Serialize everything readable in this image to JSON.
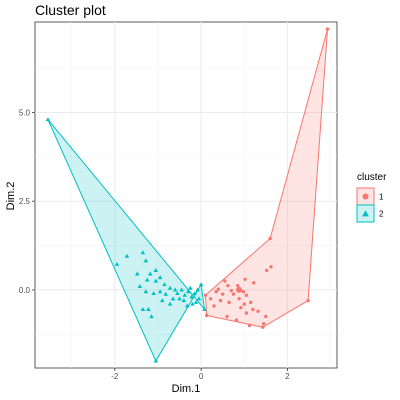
{
  "chart_data": {
    "type": "scatter",
    "title": "Cluster plot",
    "xlabel": "Dim.1",
    "ylabel": "Dim.2",
    "xlim": [
      -3.85,
      3.15
    ],
    "ylim": [
      -2.2,
      7.55
    ],
    "x_ticks": [
      -2,
      0,
      2
    ],
    "y_ticks": [
      0.0,
      2.5,
      5.0
    ],
    "x_tick_labels": [
      "-2",
      "0",
      "2"
    ],
    "y_tick_labels": [
      "0.0",
      "2.5",
      "5.0"
    ],
    "grid": true,
    "legend_position": "right",
    "legend": {
      "title": "cluster",
      "entries": [
        {
          "label": "1",
          "color": "#F8766D",
          "shape": "circle"
        },
        {
          "label": "2",
          "color": "#00BFC4",
          "shape": "triangle"
        }
      ]
    },
    "series": [
      {
        "name": "1",
        "color": "#F8766D",
        "fill": "#F8766D",
        "shape": "circle",
        "hull": [
          [
            2.93,
            7.35
          ],
          [
            2.48,
            -0.3
          ],
          [
            1.43,
            -1.05
          ],
          [
            0.13,
            -0.72
          ],
          [
            0.1,
            -0.15
          ],
          [
            1.6,
            1.45
          ]
        ],
        "points": [
          [
            2.93,
            7.35
          ],
          [
            2.48,
            -0.3
          ],
          [
            1.43,
            -1.05
          ],
          [
            0.13,
            -0.72
          ],
          [
            0.1,
            -0.15
          ],
          [
            1.6,
            1.45
          ],
          [
            1.52,
            0.55
          ],
          [
            1.62,
            0.65
          ],
          [
            1.02,
            0.3
          ],
          [
            1.22,
            0.2
          ],
          [
            0.85,
            0.12
          ],
          [
            0.98,
            -0.05
          ],
          [
            0.55,
            0.25
          ],
          [
            0.62,
            0.12
          ],
          [
            0.7,
            -0.02
          ],
          [
            0.5,
            -0.12
          ],
          [
            0.35,
            -0.05
          ],
          [
            0.45,
            -0.3
          ],
          [
            0.65,
            -0.35
          ],
          [
            0.88,
            -0.25
          ],
          [
            0.75,
            -0.12
          ],
          [
            0.92,
            -0.5
          ],
          [
            1.05,
            -0.65
          ],
          [
            1.2,
            -0.55
          ],
          [
            1.32,
            -0.6
          ],
          [
            1.5,
            -0.75
          ],
          [
            1.45,
            -0.95
          ],
          [
            0.6,
            -0.75
          ],
          [
            0.82,
            -0.85
          ],
          [
            1.12,
            -1.0
          ],
          [
            1.0,
            -0.4
          ],
          [
            0.3,
            -0.45
          ],
          [
            0.22,
            -0.25
          ],
          [
            0.4,
            0.02
          ],
          [
            1.05,
            -0.15
          ],
          [
            1.15,
            -0.35
          ]
        ],
        "big_points": [
          [
            0.88,
            0.0
          ]
        ]
      },
      {
        "name": "2",
        "color": "#00BFC4",
        "fill": "#00BFC4",
        "shape": "triangle",
        "hull": [
          [
            -3.55,
            4.8
          ],
          [
            0.08,
            -0.55
          ],
          [
            0.0,
            0.15
          ],
          [
            -1.05,
            -2.0
          ]
        ],
        "points": [
          [
            -3.55,
            4.8
          ],
          [
            0.08,
            -0.55
          ],
          [
            0.0,
            0.15
          ],
          [
            -1.05,
            -2.0
          ],
          [
            -1.72,
            0.95
          ],
          [
            -1.95,
            0.72
          ],
          [
            -1.35,
            1.05
          ],
          [
            -1.28,
            0.82
          ],
          [
            -1.18,
            0.45
          ],
          [
            -1.05,
            0.55
          ],
          [
            -1.48,
            0.45
          ],
          [
            -1.25,
            0.28
          ],
          [
            -1.05,
            0.25
          ],
          [
            -0.95,
            0.35
          ],
          [
            -0.85,
            0.15
          ],
          [
            -0.72,
            0.05
          ],
          [
            -0.6,
            0.0
          ],
          [
            -0.55,
            -0.1
          ],
          [
            -0.45,
            0.0
          ],
          [
            -0.38,
            -0.15
          ],
          [
            -0.3,
            -0.05
          ],
          [
            -0.22,
            -0.2
          ],
          [
            -0.15,
            -0.1
          ],
          [
            -0.08,
            0.0
          ],
          [
            -0.05,
            -0.25
          ],
          [
            -0.12,
            -0.35
          ],
          [
            -0.2,
            -0.4
          ],
          [
            -0.32,
            -0.45
          ],
          [
            -1.1,
            -0.1
          ],
          [
            -0.95,
            -0.05
          ],
          [
            -0.82,
            -0.12
          ],
          [
            -1.35,
            -0.55
          ],
          [
            -1.22,
            -0.55
          ],
          [
            -1.15,
            -0.75
          ],
          [
            -0.65,
            -0.25
          ],
          [
            -0.5,
            -0.25
          ],
          [
            -0.25,
            0.05
          ],
          [
            -0.4,
            -0.3
          ],
          [
            -0.72,
            -0.4
          ],
          [
            -1.42,
            0.1
          ],
          [
            -1.28,
            -0.05
          ],
          [
            -0.9,
            -0.3
          ]
        ]
      }
    ]
  }
}
